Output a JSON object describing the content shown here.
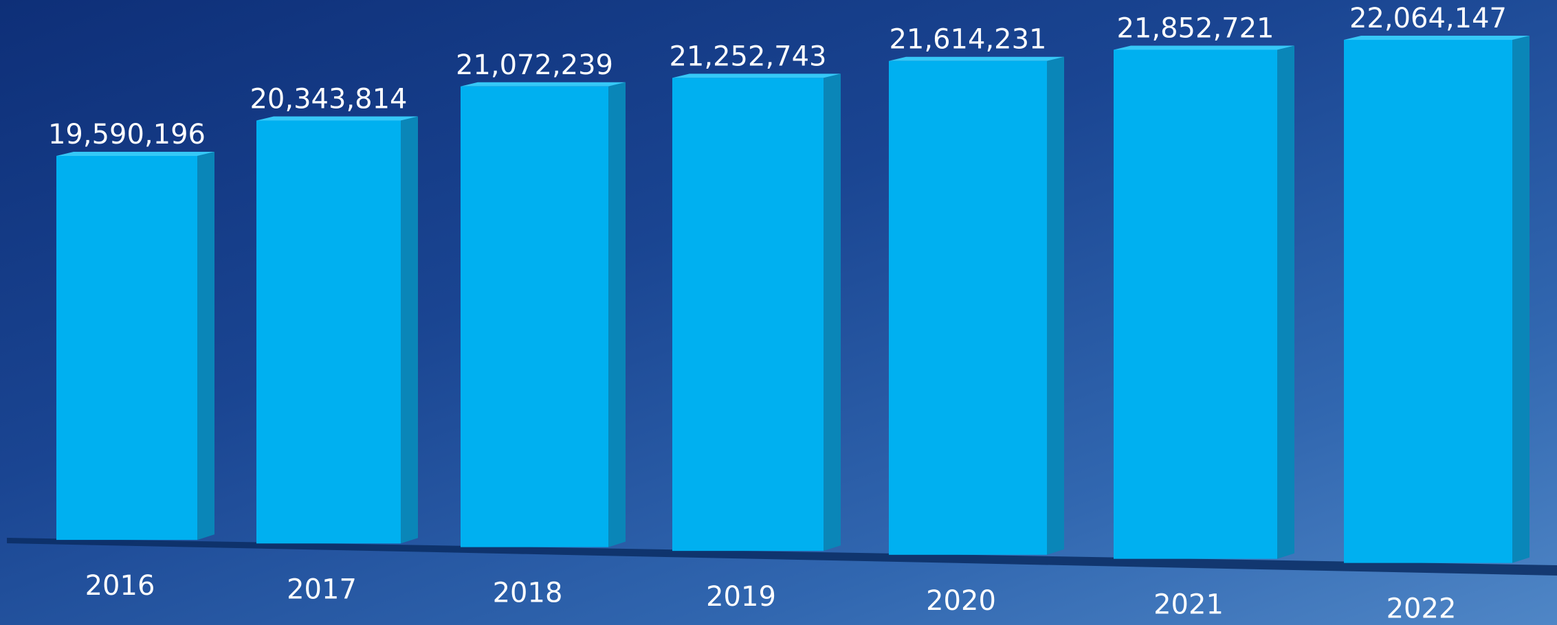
{
  "chart_data": {
    "type": "bar",
    "categories": [
      "2016",
      "2017",
      "2018",
      "2019",
      "2020",
      "2021",
      "2022"
    ],
    "values": [
      19590196,
      20343814,
      21072239,
      21252743,
      21614231,
      21852721,
      22064147
    ],
    "value_labels": [
      "19,590,196",
      "20,343,814",
      "21,072,239",
      "21,252,743",
      "21,614,231",
      "21,852,721",
      "22,064,147"
    ],
    "title": "",
    "xlabel": "",
    "ylabel": "",
    "grid": false,
    "legend": "none",
    "colors": {
      "bar_front": "#00b0f0",
      "bar_side": "#0a86b8",
      "bar_top": "#36c8f7",
      "shadow": "#0b2d63",
      "label": "#ffffff"
    }
  }
}
